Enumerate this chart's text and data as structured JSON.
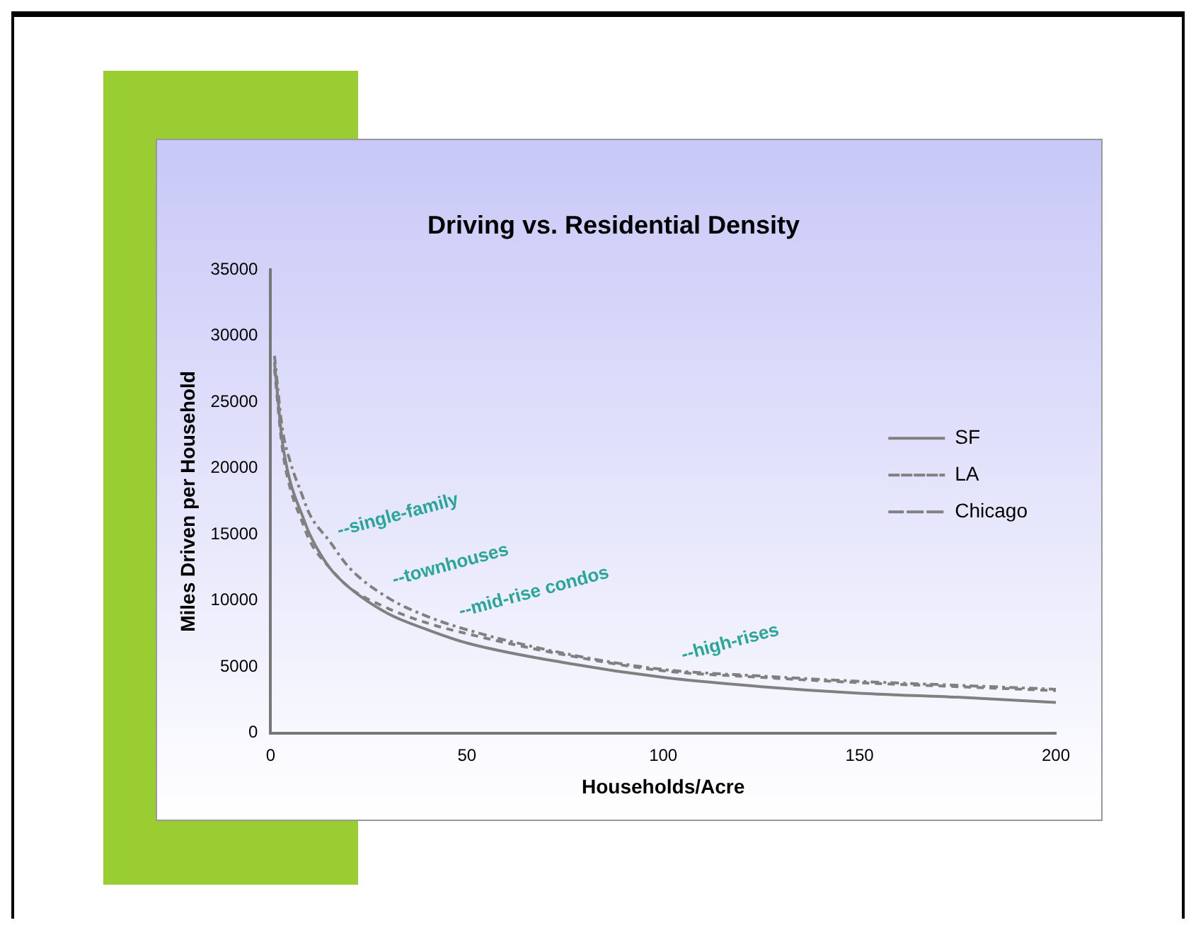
{
  "chart_data": {
    "type": "line",
    "title": "Driving vs. Residential Density",
    "xlabel": "Households/Acre",
    "ylabel": "Miles Driven per Household",
    "xlim": [
      0,
      200
    ],
    "xticks": [
      0,
      50,
      100,
      150,
      200
    ],
    "ylim": [
      0,
      35000
    ],
    "yticks": [
      0,
      5000,
      10000,
      15000,
      20000,
      25000,
      30000,
      35000
    ],
    "grid": false,
    "legend": "top right",
    "marker": "none",
    "series": [
      {
        "name": "SF",
        "color": "#808080",
        "line_style": "solid",
        "x": [
          1,
          3,
          5,
          8,
          10,
          15,
          20,
          30,
          40,
          50,
          75,
          100,
          125,
          150,
          175,
          200
        ],
        "values": [
          28000,
          22000,
          19000,
          16500,
          15000,
          12500,
          11000,
          9000,
          7800,
          6800,
          5300,
          4200,
          3500,
          3000,
          2700,
          2300
        ]
      },
      {
        "name": "LA",
        "color": "#808080",
        "line_style": "dashed",
        "x": [
          1,
          3,
          5,
          8,
          10,
          15,
          20,
          30,
          40,
          50,
          75,
          100,
          125,
          150,
          175,
          200
        ],
        "values": [
          27500,
          21500,
          18500,
          16000,
          14500,
          12500,
          11000,
          9400,
          8300,
          7500,
          5900,
          4700,
          4200,
          3800,
          3500,
          3200
        ]
      },
      {
        "name": "Chicago",
        "color": "#808080",
        "line_style": "dashdot",
        "x": [
          1,
          3,
          5,
          8,
          10,
          15,
          20,
          30,
          40,
          50,
          75,
          100,
          125,
          150,
          175,
          200
        ],
        "values": [
          28500,
          23000,
          20500,
          18000,
          16500,
          14500,
          12500,
          10200,
          8800,
          7800,
          6000,
          4800,
          4300,
          3900,
          3600,
          3300
        ]
      }
    ],
    "annotations": [
      {
        "text": "--single-family",
        "x": 17,
        "y": 14500
      },
      {
        "text": "--townhouses",
        "x": 31,
        "y": 10800
      },
      {
        "text": "--mid-rise condos",
        "x": 48,
        "y": 8400
      },
      {
        "text": "--high-rises",
        "x": 105,
        "y": 4700
      }
    ]
  }
}
